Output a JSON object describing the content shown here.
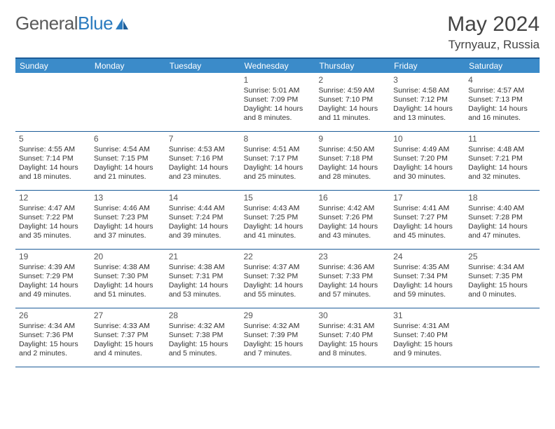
{
  "logo": {
    "text1": "General",
    "text2": "Blue"
  },
  "title": "May 2024",
  "location": "Tyrnyauz, Russia",
  "colors": {
    "header_bar": "#3b8bc9",
    "header_border": "#1d5d99",
    "logo_blue": "#2b7bbf",
    "text": "#333333"
  },
  "day_names": [
    "Sunday",
    "Monday",
    "Tuesday",
    "Wednesday",
    "Thursday",
    "Friday",
    "Saturday"
  ],
  "weeks": [
    [
      null,
      null,
      null,
      {
        "n": "1",
        "sr": "5:01 AM",
        "ss": "7:09 PM",
        "dl": "14 hours and 8 minutes."
      },
      {
        "n": "2",
        "sr": "4:59 AM",
        "ss": "7:10 PM",
        "dl": "14 hours and 11 minutes."
      },
      {
        "n": "3",
        "sr": "4:58 AM",
        "ss": "7:12 PM",
        "dl": "14 hours and 13 minutes."
      },
      {
        "n": "4",
        "sr": "4:57 AM",
        "ss": "7:13 PM",
        "dl": "14 hours and 16 minutes."
      }
    ],
    [
      {
        "n": "5",
        "sr": "4:55 AM",
        "ss": "7:14 PM",
        "dl": "14 hours and 18 minutes."
      },
      {
        "n": "6",
        "sr": "4:54 AM",
        "ss": "7:15 PM",
        "dl": "14 hours and 21 minutes."
      },
      {
        "n": "7",
        "sr": "4:53 AM",
        "ss": "7:16 PM",
        "dl": "14 hours and 23 minutes."
      },
      {
        "n": "8",
        "sr": "4:51 AM",
        "ss": "7:17 PM",
        "dl": "14 hours and 25 minutes."
      },
      {
        "n": "9",
        "sr": "4:50 AM",
        "ss": "7:18 PM",
        "dl": "14 hours and 28 minutes."
      },
      {
        "n": "10",
        "sr": "4:49 AM",
        "ss": "7:20 PM",
        "dl": "14 hours and 30 minutes."
      },
      {
        "n": "11",
        "sr": "4:48 AM",
        "ss": "7:21 PM",
        "dl": "14 hours and 32 minutes."
      }
    ],
    [
      {
        "n": "12",
        "sr": "4:47 AM",
        "ss": "7:22 PM",
        "dl": "14 hours and 35 minutes."
      },
      {
        "n": "13",
        "sr": "4:46 AM",
        "ss": "7:23 PM",
        "dl": "14 hours and 37 minutes."
      },
      {
        "n": "14",
        "sr": "4:44 AM",
        "ss": "7:24 PM",
        "dl": "14 hours and 39 minutes."
      },
      {
        "n": "15",
        "sr": "4:43 AM",
        "ss": "7:25 PM",
        "dl": "14 hours and 41 minutes."
      },
      {
        "n": "16",
        "sr": "4:42 AM",
        "ss": "7:26 PM",
        "dl": "14 hours and 43 minutes."
      },
      {
        "n": "17",
        "sr": "4:41 AM",
        "ss": "7:27 PM",
        "dl": "14 hours and 45 minutes."
      },
      {
        "n": "18",
        "sr": "4:40 AM",
        "ss": "7:28 PM",
        "dl": "14 hours and 47 minutes."
      }
    ],
    [
      {
        "n": "19",
        "sr": "4:39 AM",
        "ss": "7:29 PM",
        "dl": "14 hours and 49 minutes."
      },
      {
        "n": "20",
        "sr": "4:38 AM",
        "ss": "7:30 PM",
        "dl": "14 hours and 51 minutes."
      },
      {
        "n": "21",
        "sr": "4:38 AM",
        "ss": "7:31 PM",
        "dl": "14 hours and 53 minutes."
      },
      {
        "n": "22",
        "sr": "4:37 AM",
        "ss": "7:32 PM",
        "dl": "14 hours and 55 minutes."
      },
      {
        "n": "23",
        "sr": "4:36 AM",
        "ss": "7:33 PM",
        "dl": "14 hours and 57 minutes."
      },
      {
        "n": "24",
        "sr": "4:35 AM",
        "ss": "7:34 PM",
        "dl": "14 hours and 59 minutes."
      },
      {
        "n": "25",
        "sr": "4:34 AM",
        "ss": "7:35 PM",
        "dl": "15 hours and 0 minutes."
      }
    ],
    [
      {
        "n": "26",
        "sr": "4:34 AM",
        "ss": "7:36 PM",
        "dl": "15 hours and 2 minutes."
      },
      {
        "n": "27",
        "sr": "4:33 AM",
        "ss": "7:37 PM",
        "dl": "15 hours and 4 minutes."
      },
      {
        "n": "28",
        "sr": "4:32 AM",
        "ss": "7:38 PM",
        "dl": "15 hours and 5 minutes."
      },
      {
        "n": "29",
        "sr": "4:32 AM",
        "ss": "7:39 PM",
        "dl": "15 hours and 7 minutes."
      },
      {
        "n": "30",
        "sr": "4:31 AM",
        "ss": "7:40 PM",
        "dl": "15 hours and 8 minutes."
      },
      {
        "n": "31",
        "sr": "4:31 AM",
        "ss": "7:40 PM",
        "dl": "15 hours and 9 minutes."
      },
      null
    ]
  ]
}
